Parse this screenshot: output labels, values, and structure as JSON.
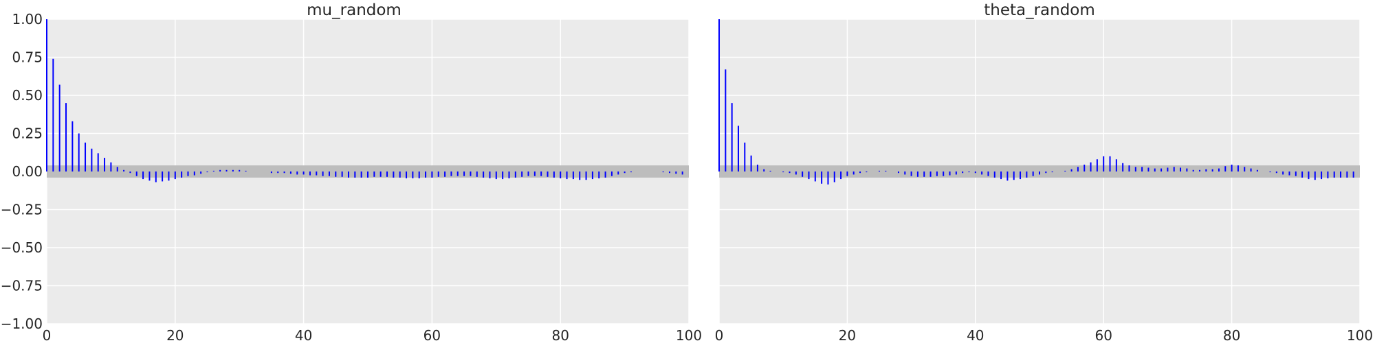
{
  "chart_data": [
    {
      "type": "bar",
      "title": "mu_random",
      "xlabel": "",
      "ylabel": "",
      "xlim": [
        0,
        100
      ],
      "ylim": [
        -1.0,
        1.0
      ],
      "xticks": [
        "0",
        "20",
        "40",
        "60",
        "80",
        "100"
      ],
      "yticks": [
        "1.00",
        "0.75",
        "0.50",
        "0.25",
        "0.00",
        "−0.25",
        "−0.50",
        "−0.75",
        "−1.00"
      ],
      "confidence_band": [
        -0.04,
        0.04
      ],
      "grid": true,
      "bar_color": "#0000ff",
      "band_color": "#bdbdbd",
      "background": "#ebebeb",
      "x": [
        0,
        1,
        2,
        3,
        4,
        5,
        6,
        7,
        8,
        9,
        10,
        11,
        12,
        13,
        14,
        15,
        16,
        17,
        18,
        19,
        20,
        21,
        22,
        23,
        24,
        25,
        26,
        27,
        28,
        29,
        30,
        31,
        32,
        33,
        34,
        35,
        36,
        37,
        38,
        39,
        40,
        41,
        42,
        43,
        44,
        45,
        46,
        47,
        48,
        49,
        50,
        51,
        52,
        53,
        54,
        55,
        56,
        57,
        58,
        59,
        60,
        61,
        62,
        63,
        64,
        65,
        66,
        67,
        68,
        69,
        70,
        71,
        72,
        73,
        74,
        75,
        76,
        77,
        78,
        79,
        80,
        81,
        82,
        83,
        84,
        85,
        86,
        87,
        88,
        89,
        90,
        91,
        92,
        93,
        94,
        95,
        96,
        97,
        98,
        99
      ],
      "values": [
        1.0,
        0.74,
        0.57,
        0.45,
        0.33,
        0.25,
        0.19,
        0.15,
        0.12,
        0.09,
        0.06,
        0.03,
        0.01,
        -0.01,
        -0.03,
        -0.05,
        -0.06,
        -0.07,
        -0.065,
        -0.06,
        -0.05,
        -0.04,
        -0.03,
        -0.025,
        -0.015,
        -0.005,
        0.005,
        0.01,
        0.01,
        0.01,
        0.01,
        0.005,
        0.0,
        0.0,
        0.0,
        -0.01,
        -0.01,
        -0.01,
        -0.015,
        -0.02,
        -0.02,
        -0.025,
        -0.025,
        -0.03,
        -0.03,
        -0.035,
        -0.035,
        -0.04,
        -0.04,
        -0.04,
        -0.04,
        -0.035,
        -0.035,
        -0.035,
        -0.04,
        -0.04,
        -0.045,
        -0.045,
        -0.045,
        -0.04,
        -0.04,
        -0.035,
        -0.035,
        -0.03,
        -0.03,
        -0.03,
        -0.03,
        -0.035,
        -0.04,
        -0.045,
        -0.05,
        -0.05,
        -0.045,
        -0.04,
        -0.035,
        -0.03,
        -0.03,
        -0.03,
        -0.035,
        -0.04,
        -0.045,
        -0.05,
        -0.05,
        -0.055,
        -0.055,
        -0.05,
        -0.045,
        -0.04,
        -0.03,
        -0.02,
        -0.01,
        -0.005,
        0.0,
        0.0,
        0.0,
        0.0,
        -0.005,
        -0.01,
        -0.015,
        -0.02
      ]
    },
    {
      "type": "bar",
      "title": "theta_random",
      "xlabel": "",
      "ylabel": "",
      "xlim": [
        0,
        100
      ],
      "ylim": [
        -1.0,
        1.0
      ],
      "xticks": [
        "0",
        "20",
        "40",
        "60",
        "80",
        "100"
      ],
      "yticks": [],
      "confidence_band": [
        -0.04,
        0.04
      ],
      "grid": true,
      "bar_color": "#0000ff",
      "band_color": "#bdbdbd",
      "background": "#ebebeb",
      "x": [
        0,
        1,
        2,
        3,
        4,
        5,
        6,
        7,
        8,
        9,
        10,
        11,
        12,
        13,
        14,
        15,
        16,
        17,
        18,
        19,
        20,
        21,
        22,
        23,
        24,
        25,
        26,
        27,
        28,
        29,
        30,
        31,
        32,
        33,
        34,
        35,
        36,
        37,
        38,
        39,
        40,
        41,
        42,
        43,
        44,
        45,
        46,
        47,
        48,
        49,
        50,
        51,
        52,
        53,
        54,
        55,
        56,
        57,
        58,
        59,
        60,
        61,
        62,
        63,
        64,
        65,
        66,
        67,
        68,
        69,
        70,
        71,
        72,
        73,
        74,
        75,
        76,
        77,
        78,
        79,
        80,
        81,
        82,
        83,
        84,
        85,
        86,
        87,
        88,
        89,
        90,
        91,
        92,
        93,
        94,
        95,
        96,
        97,
        98,
        99
      ],
      "values": [
        1.0,
        0.67,
        0.45,
        0.3,
        0.19,
        0.105,
        0.045,
        0.015,
        0.005,
        0.0,
        -0.005,
        -0.01,
        -0.02,
        -0.035,
        -0.05,
        -0.065,
        -0.08,
        -0.085,
        -0.07,
        -0.05,
        -0.03,
        -0.02,
        -0.01,
        -0.005,
        0.0,
        0.005,
        0.005,
        0.0,
        -0.01,
        -0.02,
        -0.03,
        -0.035,
        -0.035,
        -0.035,
        -0.03,
        -0.03,
        -0.025,
        -0.02,
        -0.01,
        -0.005,
        -0.01,
        -0.02,
        -0.03,
        -0.04,
        -0.05,
        -0.06,
        -0.055,
        -0.05,
        -0.04,
        -0.03,
        -0.02,
        -0.01,
        -0.005,
        0.0,
        0.005,
        0.015,
        0.03,
        0.045,
        0.06,
        0.08,
        0.1,
        0.1,
        0.08,
        0.055,
        0.04,
        0.03,
        0.03,
        0.025,
        0.02,
        0.02,
        0.025,
        0.03,
        0.025,
        0.02,
        0.01,
        0.01,
        0.015,
        0.015,
        0.02,
        0.035,
        0.045,
        0.04,
        0.03,
        0.02,
        0.01,
        0.0,
        -0.005,
        -0.01,
        -0.02,
        -0.025,
        -0.03,
        -0.04,
        -0.05,
        -0.055,
        -0.05,
        -0.045,
        -0.04,
        -0.04,
        -0.04,
        -0.04
      ]
    }
  ]
}
